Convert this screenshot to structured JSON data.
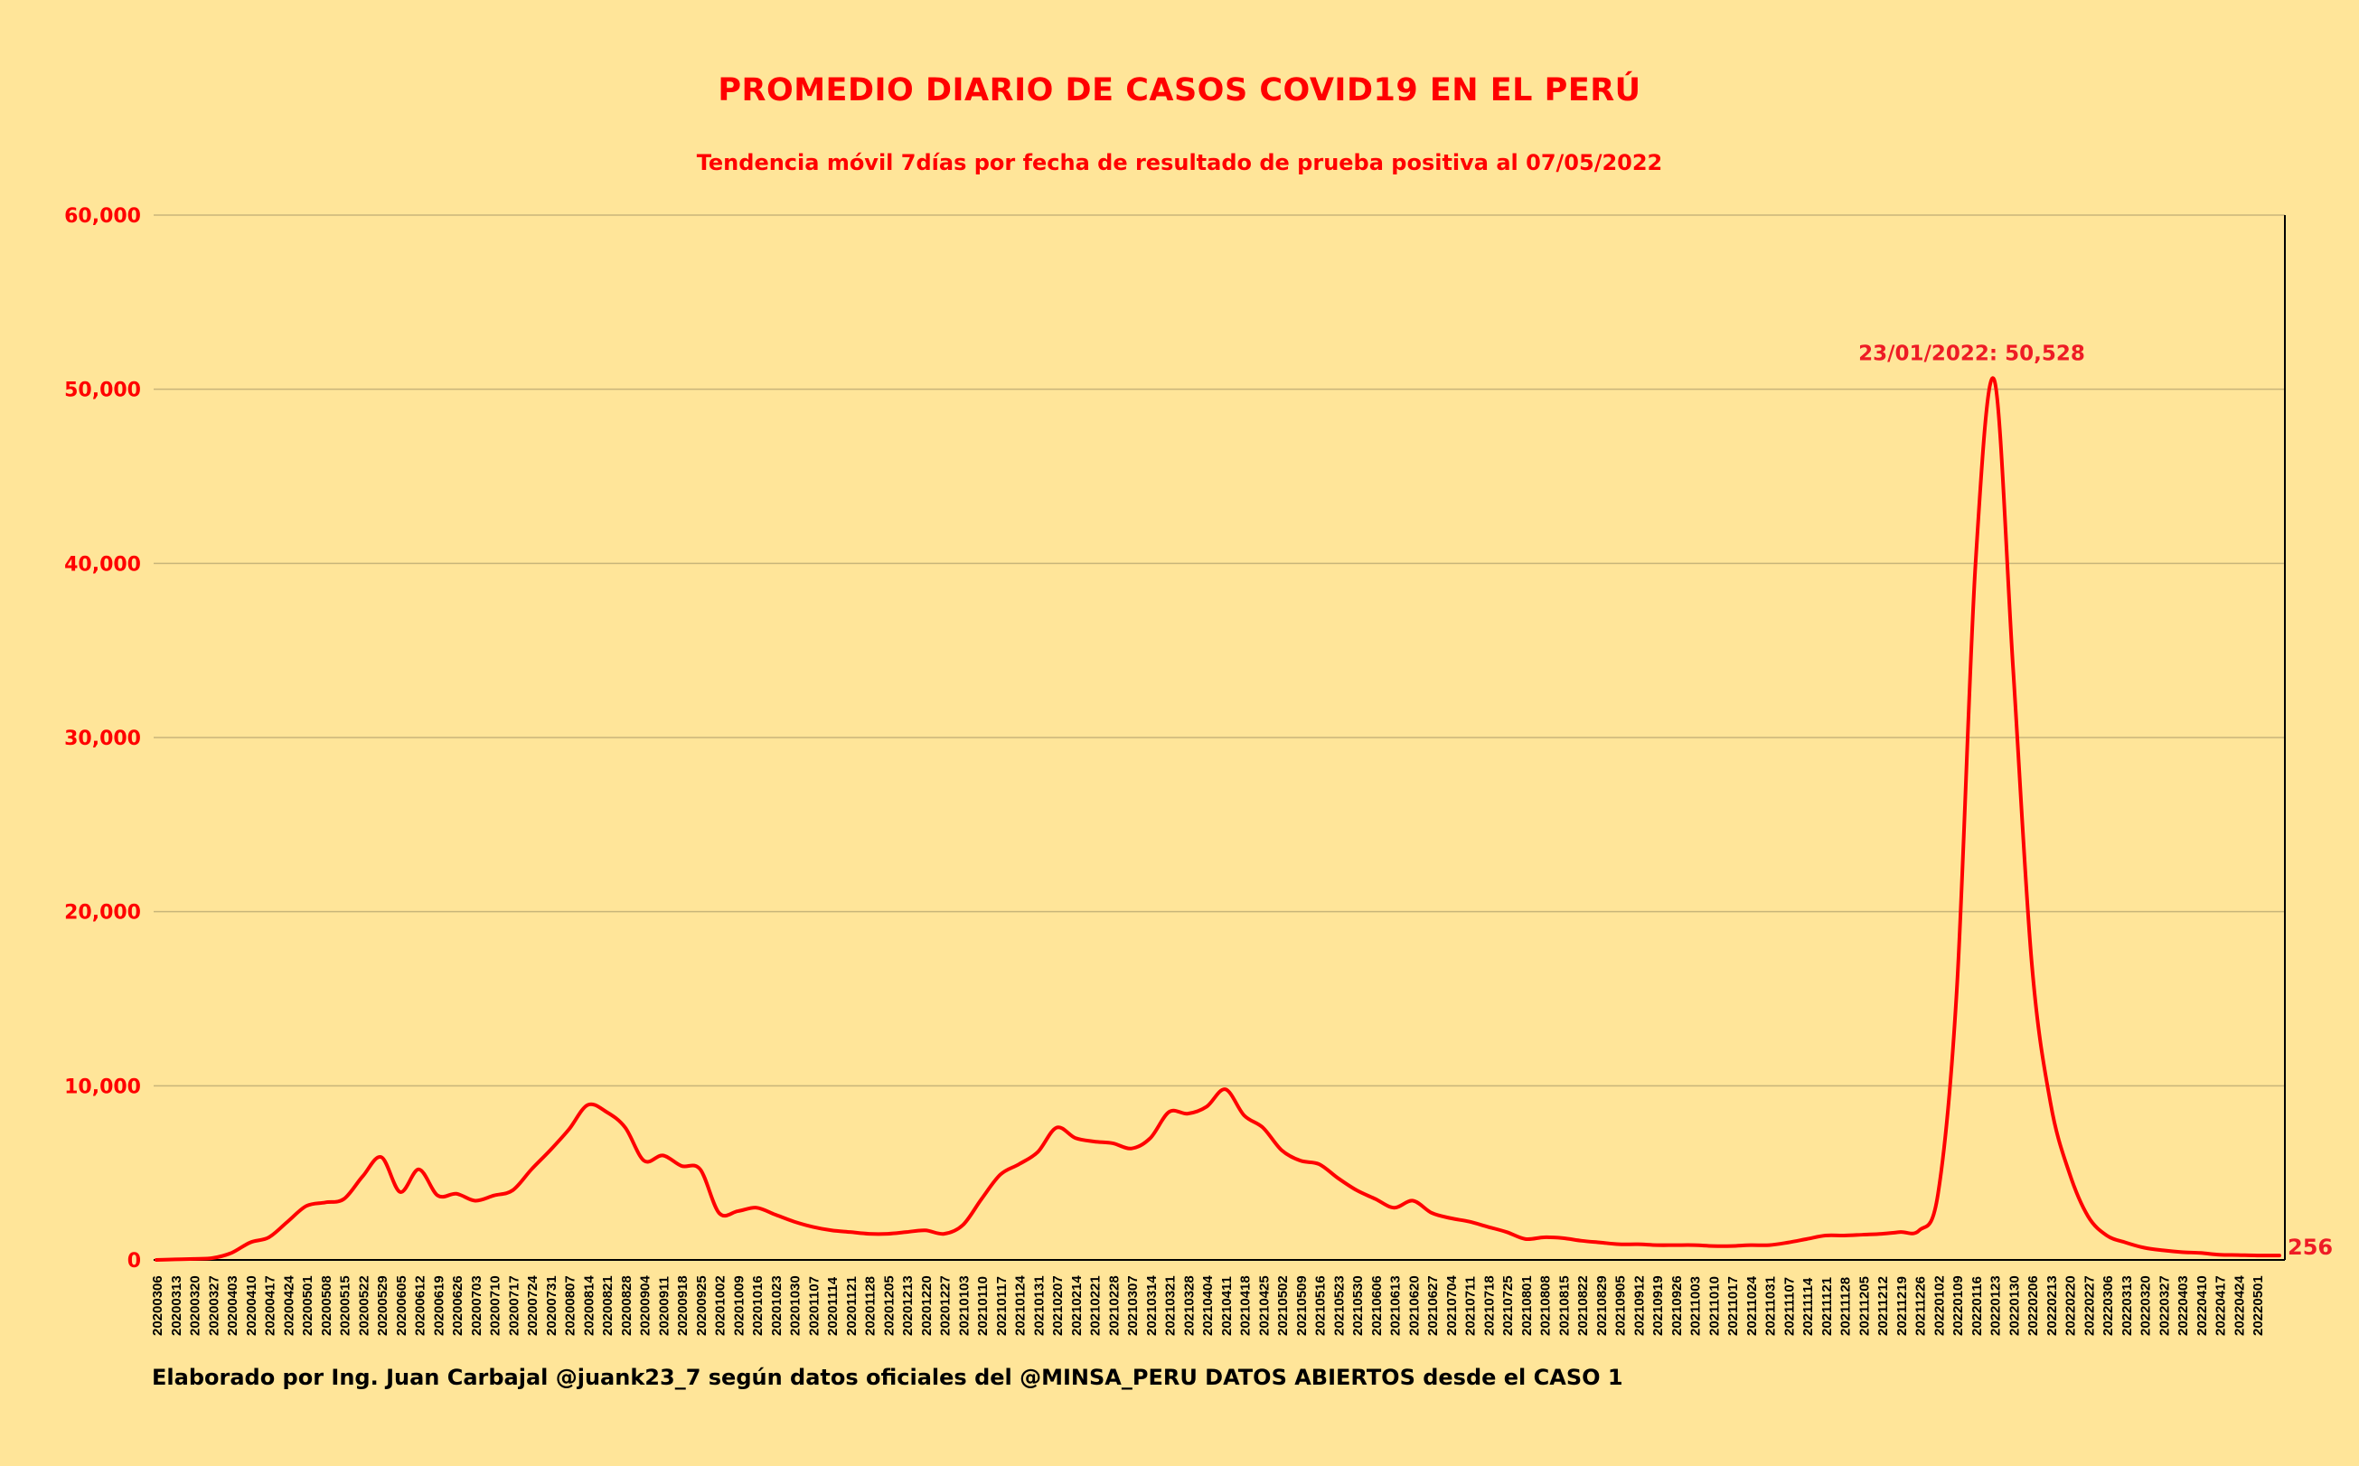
{
  "chart_data": {
    "type": "line",
    "title": "PROMEDIO DIARIO DE CASOS COVID19 EN EL PERÚ",
    "subtitle": "Tendencia móvil 7días por fecha de resultado de prueba positiva al 07/05/2022",
    "xlabel": "",
    "ylabel": "",
    "ylim": [
      0,
      60000
    ],
    "yticks": [
      0,
      10000,
      20000,
      30000,
      40000,
      50000,
      60000
    ],
    "ytick_labels": [
      "0",
      "10,000",
      "20,000",
      "30,000",
      "40,000",
      "50,000",
      "60,000"
    ],
    "grid": true,
    "legend": null,
    "line_color": "#FF0000",
    "background": "#FFE599",
    "categories": [
      "20200306",
      "20200313",
      "20200320",
      "20200327",
      "20200403",
      "20200410",
      "20200417",
      "20200424",
      "20200501",
      "20200508",
      "20200515",
      "20200522",
      "20200529",
      "20200605",
      "20200612",
      "20200619",
      "20200626",
      "20200703",
      "20200710",
      "20200717",
      "20200724",
      "20200731",
      "20200807",
      "20200814",
      "20200821",
      "20200828",
      "20200904",
      "20200911",
      "20200918",
      "20200925",
      "20201002",
      "20201009",
      "20201016",
      "20201023",
      "20201030",
      "20201107",
      "20201114",
      "20201121",
      "20201128",
      "20201205",
      "20201213",
      "20201220",
      "20201227",
      "20210103",
      "20210110",
      "20210117",
      "20210124",
      "20210131",
      "20210207",
      "20210214",
      "20210221",
      "20210228",
      "20210307",
      "20210314",
      "20210321",
      "20210328",
      "20210404",
      "20210411",
      "20210418",
      "20210425",
      "20210502",
      "20210509",
      "20210516",
      "20210523",
      "20210530",
      "20210606",
      "20210613",
      "20210620",
      "20210627",
      "20210704",
      "20210711",
      "20210718",
      "20210725",
      "20210801",
      "20210808",
      "20210815",
      "20210822",
      "20210829",
      "20210905",
      "20210912",
      "20210919",
      "20210926",
      "20211003",
      "20211010",
      "20211017",
      "20211024",
      "20211031",
      "20211107",
      "20211114",
      "20211121",
      "20211128",
      "20211205",
      "20211212",
      "20211219",
      "20211226",
      "20220102",
      "20220109",
      "20220116",
      "20220123",
      "20220130",
      "20220206",
      "20220213",
      "20220220",
      "20220227",
      "20220306",
      "20220313",
      "20220320",
      "20220327",
      "20220403",
      "20220410",
      "20220417",
      "20220424",
      "20220501"
    ],
    "series": [
      {
        "name": "Promedio móvil 7 días",
        "values": [
          0,
          30,
          60,
          110,
          400,
          1000,
          1300,
          2200,
          3100,
          3300,
          3500,
          4800,
          5900,
          3900,
          5200,
          3700,
          3800,
          3400,
          3700,
          4000,
          5200,
          6300,
          7500,
          8900,
          8500,
          7600,
          5700,
          6000,
          5400,
          5200,
          2700,
          2800,
          3000,
          2600,
          2200,
          1900,
          1700,
          1600,
          1500,
          1500,
          1600,
          1700,
          1500,
          2000,
          3500,
          4900,
          5500,
          6200,
          7600,
          7000,
          6800,
          6700,
          6400,
          7000,
          8500,
          8400,
          8800,
          9800,
          8300,
          7600,
          6300,
          5700,
          5500,
          4700,
          4000,
          3500,
          3000,
          3400,
          2700,
          2400,
          2200,
          1900,
          1600,
          1200,
          1300,
          1250,
          1100,
          1000,
          900,
          900,
          850,
          850,
          850,
          800,
          800,
          850,
          850,
          1000,
          1200,
          1400,
          1400,
          1450,
          1500,
          1600,
          1700,
          3800,
          15500,
          40000,
          50528,
          34000,
          17000,
          9000,
          5000,
          2500,
          1400,
          1000,
          700,
          550,
          450,
          400,
          300,
          280,
          256
        ]
      }
    ],
    "annotations": [
      {
        "text": "23/01/2022: 50,528",
        "x": "20220123",
        "y": 50528
      },
      {
        "text": "256",
        "x": "20220501",
        "y": 256
      }
    ],
    "footer": "Elaborado por Ing. Juan Carbajal @juank23_7 según datos oficiales del @MINSA_PERU DATOS ABIERTOS desde el CASO 1"
  }
}
